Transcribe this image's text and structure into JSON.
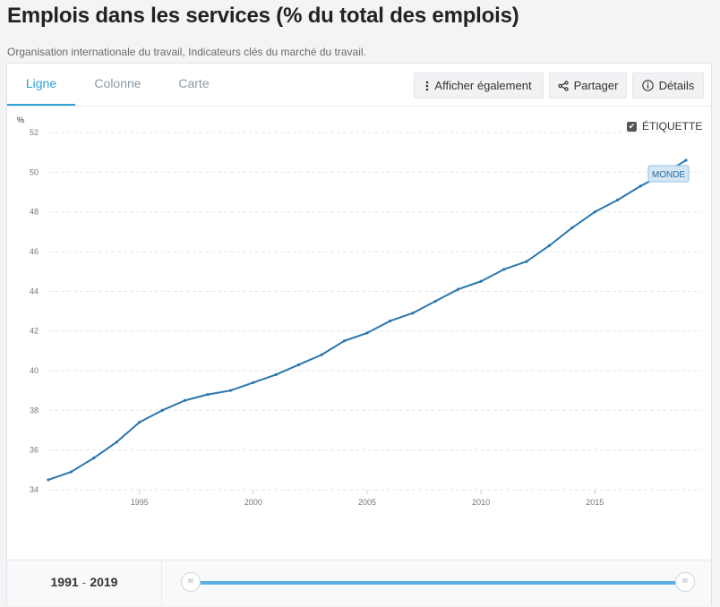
{
  "page": {
    "title": "Emplois dans les services (% du total des emplois)",
    "subtitle": "Organisation internationale du travail, Indicateurs clés du marché du travail."
  },
  "tabs": [
    {
      "label": "Ligne",
      "active": true
    },
    {
      "label": "Colonne",
      "active": false
    },
    {
      "label": "Carte",
      "active": false
    }
  ],
  "toolbar": {
    "show_also_label": "Afficher également",
    "share_label": "Partager",
    "details_label": "Détails"
  },
  "label_toggle": {
    "label": "ÉTIQUETTE",
    "checked": true
  },
  "range": {
    "start": "1991",
    "separator": "-",
    "end": "2019"
  },
  "chart_data": {
    "type": "line",
    "ylabel": "%",
    "ylim": [
      34,
      52
    ],
    "yticks": [
      34,
      36,
      38,
      40,
      42,
      44,
      46,
      48,
      50,
      52
    ],
    "xlim": [
      1991,
      2019
    ],
    "xticks": [
      1995,
      2000,
      2005,
      2010,
      2015
    ],
    "grid": true,
    "color": "#2a76ae",
    "series": [
      {
        "name": "MONDE",
        "x": [
          1991,
          1992,
          1993,
          1994,
          1995,
          1996,
          1997,
          1998,
          1999,
          2000,
          2001,
          2002,
          2003,
          2004,
          2005,
          2006,
          2007,
          2008,
          2009,
          2010,
          2011,
          2012,
          2013,
          2014,
          2015,
          2016,
          2017,
          2018,
          2019
        ],
        "values": [
          34.5,
          34.9,
          35.6,
          36.4,
          37.4,
          38.0,
          38.5,
          38.8,
          39.0,
          39.4,
          39.8,
          40.3,
          40.8,
          41.5,
          41.9,
          42.5,
          42.9,
          43.5,
          44.1,
          44.5,
          45.1,
          45.5,
          46.3,
          47.2,
          48.0,
          48.6,
          49.3,
          49.9,
          50.6
        ]
      }
    ]
  }
}
